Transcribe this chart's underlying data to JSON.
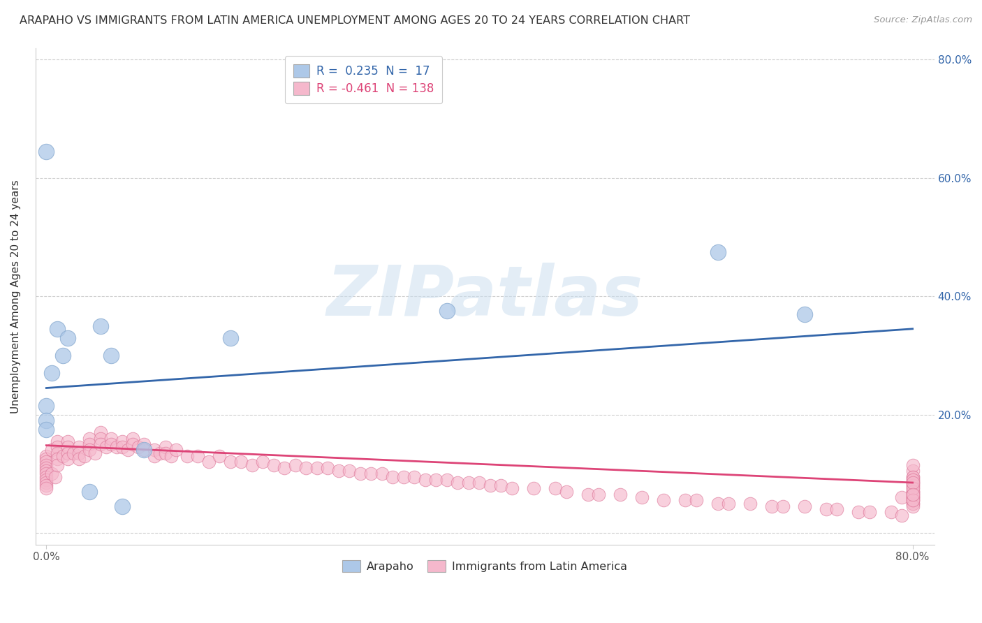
{
  "title": "ARAPAHO VS IMMIGRANTS FROM LATIN AMERICA UNEMPLOYMENT AMONG AGES 20 TO 24 YEARS CORRELATION CHART",
  "source": "Source: ZipAtlas.com",
  "xlabel": "",
  "ylabel": "Unemployment Among Ages 20 to 24 years",
  "xlim": [
    -0.01,
    0.82
  ],
  "ylim": [
    -0.02,
    0.82
  ],
  "background_color": "#ffffff",
  "grid_color": "#d0d0d0",
  "blue_series": {
    "name": "Arapaho",
    "color": "#adc8e8",
    "edge_color": "#88aad0",
    "R": 0.235,
    "N": 17,
    "trend_color": "#3366aa",
    "trend_x": [
      0.0,
      0.8
    ],
    "trend_y": [
      0.245,
      0.345
    ],
    "x": [
      0.0,
      0.0,
      0.0,
      0.0,
      0.005,
      0.01,
      0.015,
      0.02,
      0.04,
      0.05,
      0.06,
      0.07,
      0.09,
      0.17,
      0.37,
      0.62,
      0.7
    ],
    "y": [
      0.645,
      0.215,
      0.19,
      0.175,
      0.27,
      0.345,
      0.3,
      0.33,
      0.07,
      0.35,
      0.3,
      0.045,
      0.14,
      0.33,
      0.375,
      0.475,
      0.37
    ]
  },
  "pink_series": {
    "name": "Immigrants from Latin America",
    "color": "#f5b8cc",
    "edge_color": "#dd7799",
    "R": -0.461,
    "N": 138,
    "trend_color": "#dd4477",
    "trend_x": [
      0.0,
      0.8
    ],
    "trend_y": [
      0.148,
      0.085
    ],
    "x": [
      0.0,
      0.0,
      0.0,
      0.0,
      0.0,
      0.0,
      0.0,
      0.0,
      0.0,
      0.0,
      0.0,
      0.0,
      0.005,
      0.005,
      0.008,
      0.01,
      0.01,
      0.01,
      0.01,
      0.01,
      0.015,
      0.02,
      0.02,
      0.02,
      0.02,
      0.025,
      0.03,
      0.03,
      0.03,
      0.035,
      0.04,
      0.04,
      0.04,
      0.045,
      0.05,
      0.05,
      0.05,
      0.055,
      0.06,
      0.06,
      0.065,
      0.07,
      0.07,
      0.075,
      0.08,
      0.08,
      0.085,
      0.09,
      0.09,
      0.1,
      0.1,
      0.105,
      0.11,
      0.11,
      0.115,
      0.12,
      0.13,
      0.14,
      0.15,
      0.16,
      0.17,
      0.18,
      0.19,
      0.2,
      0.21,
      0.22,
      0.23,
      0.24,
      0.25,
      0.26,
      0.27,
      0.28,
      0.29,
      0.3,
      0.31,
      0.32,
      0.33,
      0.34,
      0.35,
      0.36,
      0.37,
      0.38,
      0.39,
      0.4,
      0.41,
      0.42,
      0.43,
      0.45,
      0.47,
      0.48,
      0.5,
      0.51,
      0.53,
      0.55,
      0.57,
      0.59,
      0.6,
      0.62,
      0.63,
      0.65,
      0.67,
      0.68,
      0.7,
      0.72,
      0.73,
      0.75,
      0.76,
      0.78,
      0.79,
      0.79,
      0.8,
      0.8,
      0.8,
      0.8,
      0.8,
      0.8,
      0.8,
      0.8,
      0.8,
      0.8,
      0.8,
      0.8,
      0.8,
      0.8,
      0.8,
      0.8,
      0.8,
      0.8,
      0.8,
      0.8,
      0.8,
      0.8,
      0.8,
      0.8,
      0.8,
      0.8,
      0.8,
      0.8
    ],
    "y": [
      0.13,
      0.125,
      0.12,
      0.115,
      0.11,
      0.105,
      0.1,
      0.095,
      0.09,
      0.085,
      0.08,
      0.075,
      0.14,
      0.1,
      0.095,
      0.155,
      0.145,
      0.135,
      0.125,
      0.115,
      0.13,
      0.155,
      0.145,
      0.135,
      0.125,
      0.135,
      0.145,
      0.135,
      0.125,
      0.13,
      0.16,
      0.15,
      0.14,
      0.135,
      0.17,
      0.16,
      0.15,
      0.145,
      0.16,
      0.15,
      0.145,
      0.155,
      0.145,
      0.14,
      0.16,
      0.15,
      0.145,
      0.15,
      0.14,
      0.14,
      0.13,
      0.135,
      0.145,
      0.135,
      0.13,
      0.14,
      0.13,
      0.13,
      0.12,
      0.13,
      0.12,
      0.12,
      0.115,
      0.12,
      0.115,
      0.11,
      0.115,
      0.11,
      0.11,
      0.11,
      0.105,
      0.105,
      0.1,
      0.1,
      0.1,
      0.095,
      0.095,
      0.095,
      0.09,
      0.09,
      0.09,
      0.085,
      0.085,
      0.085,
      0.08,
      0.08,
      0.075,
      0.075,
      0.075,
      0.07,
      0.065,
      0.065,
      0.065,
      0.06,
      0.055,
      0.055,
      0.055,
      0.05,
      0.05,
      0.05,
      0.045,
      0.045,
      0.045,
      0.04,
      0.04,
      0.035,
      0.035,
      0.035,
      0.03,
      0.06,
      0.085,
      0.095,
      0.105,
      0.115,
      0.06,
      0.07,
      0.08,
      0.09,
      0.05,
      0.065,
      0.075,
      0.085,
      0.095,
      0.06,
      0.055,
      0.07,
      0.08,
      0.09,
      0.05,
      0.06,
      0.07,
      0.055,
      0.065,
      0.075,
      0.085,
      0.045,
      0.055,
      0.065
    ]
  },
  "legend": {
    "blue_label": "R =  0.235  N =  17",
    "pink_label": "R = -0.461  N = 138",
    "blue_color": "#adc8e8",
    "pink_color": "#f5b8cc",
    "blue_text_color": "#3366aa",
    "pink_text_color": "#dd4477"
  },
  "bottom_legend": {
    "arapaho_label": "Arapaho",
    "immigrants_label": "Immigrants from Latin America",
    "blue_color": "#adc8e8",
    "pink_color": "#f5b8cc"
  },
  "watermark_text": "ZIPatlas",
  "watermark_color": "#ccdff0",
  "title_fontsize": 11.5,
  "axis_label_fontsize": 11,
  "tick_fontsize": 11,
  "legend_fontsize": 12
}
